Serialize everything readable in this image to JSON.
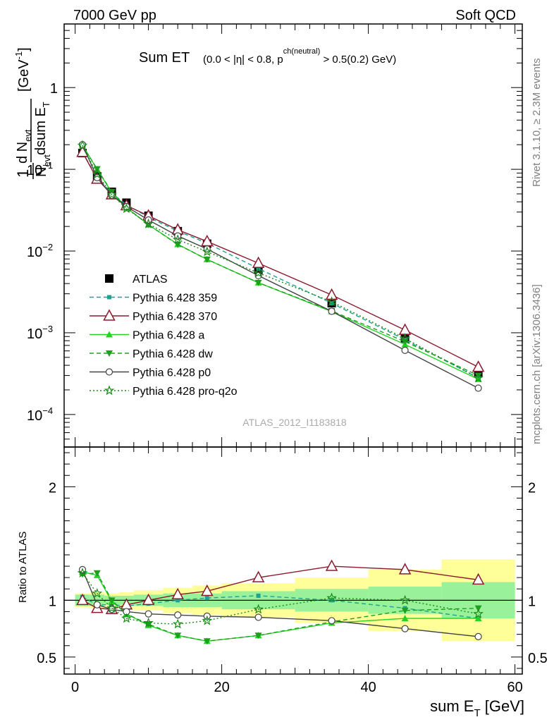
{
  "header": {
    "left": "7000 GeV pp",
    "right": "Soft QCD"
  },
  "side_labels": {
    "top": "Rivet 3.1.10, ≥ 2.3M events",
    "bottom": "mcplots.cern.ch [arXiv:1306.3436]"
  },
  "chart_data": [
    {
      "type": "line",
      "panel": "main",
      "title_main": "Sum ET",
      "title_cuts_a": "(0.0 < |η| < 0.8, p",
      "title_cuts_sup": "ch(neutral)",
      "title_cuts_b": " > 0.5(0.2) GeV)",
      "ylabel_num": "d N",
      "ylabel_num_sub": "evt",
      "ylabel_den": "N",
      "ylabel_den_sub": "evt",
      "ylabel_den2": "dsum E",
      "ylabel_den2_sub": "T",
      "ylabel_one": "1",
      "ylabel_unit": "[GeV",
      "ylabel_unit_sup": "-1",
      "ylabel_unit_close": "]",
      "yscale": "log",
      "ylim": [
        4e-05,
        6
      ],
      "xlim": [
        -1.5,
        61
      ],
      "y_ticks": [
        {
          "value": 1,
          "label": "1"
        },
        {
          "value": 0.1,
          "label": "10",
          "exp": "−1"
        },
        {
          "value": 0.01,
          "label": "10",
          "exp": "−2"
        },
        {
          "value": 0.001,
          "label": "10",
          "exp": "−3"
        },
        {
          "value": 0.0001,
          "label": "10",
          "exp": "−4"
        }
      ],
      "watermark": "ATLAS_2012_I1183818",
      "legend_position": "middle-left",
      "x": [
        1,
        3,
        5,
        7,
        10,
        14,
        18,
        25,
        35,
        45,
        55
      ],
      "series": [
        {
          "name": "ATLAS",
          "style": "data",
          "color": "#000000",
          "values": [
            0.158,
            0.082,
            0.053,
            0.039,
            0.027,
            0.0175,
            0.0123,
            0.0059,
            0.0023,
            0.00085,
            0.00032
          ]
        },
        {
          "name": "Pythia 6.428 359",
          "style": "dashed",
          "marker": "square",
          "color": "#1fa291",
          "values": [
            0.162,
            0.079,
            0.051,
            0.037,
            0.026,
            0.0175,
            0.0125,
            0.0061,
            0.0023,
            0.00082,
            0.00028
          ]
        },
        {
          "name": "Pythia 6.428 370",
          "style": "solid",
          "marker": "open-triangle",
          "color": "#8b1a2e",
          "values": [
            0.162,
            0.076,
            0.049,
            0.036,
            0.027,
            0.0182,
            0.0131,
            0.0071,
            0.0029,
            0.00108,
            0.00038
          ]
        },
        {
          "name": "Pythia 6.428 a",
          "style": "solid",
          "marker": "triangle",
          "color": "#22d422",
          "values": [
            0.198,
            0.1,
            0.052,
            0.034,
            0.021,
            0.0121,
            0.0079,
            0.0041,
            0.00182,
            0.00072,
            0.00027
          ]
        },
        {
          "name": "Pythia 6.428 dw",
          "style": "dashed",
          "marker": "triangle-down",
          "color": "#1ea01e",
          "values": [
            0.195,
            0.101,
            0.053,
            0.034,
            0.021,
            0.012,
            0.0079,
            0.0041,
            0.00185,
            0.00078,
            0.0003
          ]
        },
        {
          "name": "Pythia 6.428 p0",
          "style": "solid",
          "marker": "open-circle",
          "color": "#444444",
          "values": [
            0.2,
            0.079,
            0.048,
            0.035,
            0.024,
            0.0153,
            0.0106,
            0.005,
            0.00183,
            0.00061,
            0.00021
          ]
        },
        {
          "name": "Pythia 6.428 pro-q2o",
          "style": "dotted",
          "marker": "open-star",
          "color": "#1a8a1a",
          "values": [
            0.196,
            0.087,
            0.049,
            0.033,
            0.0215,
            0.0138,
            0.0098,
            0.0054,
            0.0024,
            0.00085,
            0.00028
          ]
        }
      ]
    },
    {
      "type": "line",
      "panel": "ratio",
      "ylabel": "Ratio to ATLAS",
      "xlabel": "sum E",
      "xlabel_sub": "T",
      "xlabel_unit": " [GeV]",
      "ylim": [
        0.35,
        2.35
      ],
      "xlim": [
        -1.5,
        61
      ],
      "x_ticks": [
        0,
        20,
        40,
        60
      ],
      "y_ticks": [
        0.5,
        1,
        2
      ],
      "reference_line": 1,
      "bins": [
        0,
        2,
        4,
        6,
        8,
        12,
        16,
        20,
        30,
        40,
        50,
        60
      ],
      "band_inner": [
        0.05,
        0.05,
        0.04,
        0.04,
        0.05,
        0.06,
        0.06,
        0.08,
        0.1,
        0.12,
        0.16
      ],
      "band_outer": [
        0.06,
        0.07,
        0.06,
        0.07,
        0.09,
        0.11,
        0.13,
        0.15,
        0.2,
        0.27,
        0.36
      ],
      "band_colors": {
        "inner": "#99f299",
        "outer": "#ffff99"
      },
      "x": [
        1,
        3,
        5,
        7,
        10,
        14,
        18,
        25,
        35,
        45,
        55
      ],
      "series": [
        {
          "name": "Pythia 6.428 359",
          "values": [
            1.03,
            0.96,
            0.96,
            0.95,
            0.97,
            1.0,
            1.02,
            1.04,
            1.0,
            0.93,
            0.84
          ]
        },
        {
          "name": "Pythia 6.428 370",
          "values": [
            1.0,
            0.93,
            0.92,
            0.96,
            1.0,
            1.05,
            1.08,
            1.2,
            1.3,
            1.27,
            1.18
          ]
        },
        {
          "name": "Pythia 6.428 a",
          "values": [
            1.25,
            1.22,
            0.99,
            0.88,
            0.78,
            0.69,
            0.64,
            0.69,
            0.8,
            0.84,
            0.84
          ]
        },
        {
          "name": "Pythia 6.428 dw",
          "values": [
            1.23,
            1.24,
            1.0,
            0.88,
            0.79,
            0.69,
            0.64,
            0.69,
            0.81,
            0.91,
            0.93
          ]
        },
        {
          "name": "Pythia 6.428 p0",
          "values": [
            1.27,
            0.96,
            0.92,
            0.9,
            0.88,
            0.87,
            0.86,
            0.85,
            0.82,
            0.75,
            0.68
          ]
        },
        {
          "name": "Pythia 6.428 pro-q2o",
          "values": [
            1.24,
            1.06,
            0.93,
            0.84,
            0.8,
            0.79,
            0.82,
            0.92,
            1.02,
            1.0,
            0.88
          ]
        }
      ]
    }
  ]
}
